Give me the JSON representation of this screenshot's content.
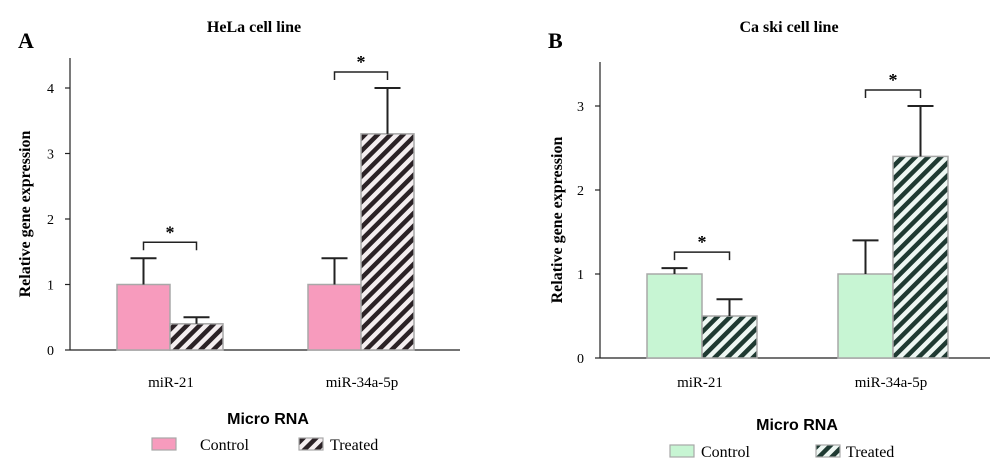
{
  "chart_data": [
    {
      "type": "bar",
      "panel_label": "A",
      "title": "HeLa cell line",
      "xlabel": "Micro RNA",
      "ylabel": "Relative gene expression",
      "categories": [
        "miR-21",
        "miR-34a-5p"
      ],
      "series": [
        {
          "name": "Control",
          "values": [
            1.0,
            1.0
          ],
          "errors": [
            0.4,
            0.4
          ]
        },
        {
          "name": "Treated",
          "values": [
            0.4,
            3.3
          ],
          "errors": [
            0.1,
            0.7
          ]
        }
      ],
      "significance": [
        "*",
        "*"
      ],
      "ylim": [
        0,
        4.5
      ],
      "yticks": [
        0,
        1,
        2,
        3,
        4
      ],
      "colors": {
        "control": "#f79bbd",
        "treated_stripe": "#2b2226",
        "treated_bg": "#f4eef0",
        "bar_edge": "#a8a8a8"
      }
    },
    {
      "type": "bar",
      "panel_label": "B",
      "title": "Ca ski cell line",
      "xlabel": "Micro RNA",
      "ylabel": "Relative gene expression",
      "categories": [
        "miR-21",
        "miR-34a-5p"
      ],
      "series": [
        {
          "name": "Control",
          "values": [
            1.0,
            1.0
          ],
          "errors": [
            0.07,
            0.4
          ]
        },
        {
          "name": "Treated",
          "values": [
            0.5,
            2.4
          ],
          "errors": [
            0.2,
            0.6
          ]
        }
      ],
      "significance": [
        "*",
        "*"
      ],
      "ylim": [
        0,
        3.5
      ],
      "yticks": [
        0,
        1,
        2,
        3
      ],
      "colors": {
        "control": "#c7f5d3",
        "treated_stripe": "#1f3a32",
        "treated_bg": "#eef7f3",
        "bar_edge": "#a8a8a8"
      }
    }
  ]
}
